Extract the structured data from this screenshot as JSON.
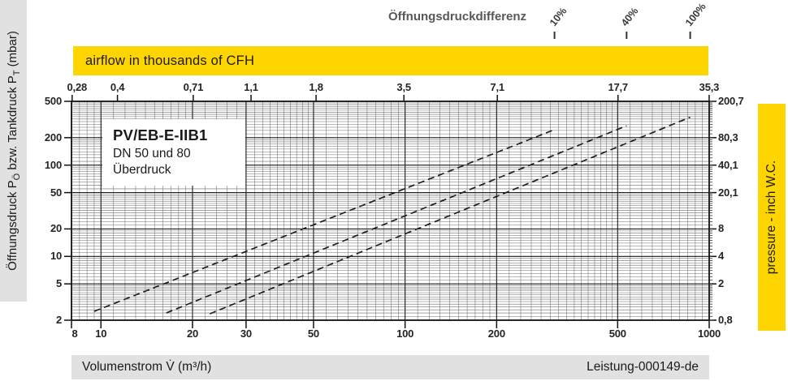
{
  "header": {
    "diff_label": "Öffnungsdruckdifferenz",
    "airflow_band": "airflow in thousands of CFH"
  },
  "legend_box": {
    "title": "PV/EB-E-IIB1",
    "line1": "DN 50 und 80",
    "line2": "Überdruck"
  },
  "left_band": {
    "part1": "Öffnungsdruck P",
    "sub1": "Ö",
    "part2": " bzw. Tankdruck P",
    "sub2": "T",
    "part3": " (mbar)"
  },
  "right_band": {
    "label": "pressure  - inch W.C."
  },
  "footer": {
    "x_axis_label": "Volumenstrom V̇ (m³/h)",
    "doc_id": "Leistung-000149-de"
  },
  "colors": {
    "accent_yellow": "#FFD500",
    "band_grey": "#E1E1E1",
    "grid_minor": "#6E6E6E",
    "grid_major": "#1C1C1C",
    "curve": "#1F1F1F",
    "text_dark": "#1A1A1A",
    "text_grey": "#585858"
  },
  "chart_data": {
    "type": "line",
    "title": "PV/EB-E-IIB1 DN 50 und 80 Überdruck",
    "xlabel": "Volumenstrom V̇ (m³/h)",
    "ylabel": "Öffnungsdruck PÖ bzw. Tankdruck PT (mbar)",
    "x_scale": "log",
    "y_scale": "log",
    "xlim": [
      8,
      1000
    ],
    "ylim": [
      2,
      500
    ],
    "grid": "fine-log",
    "x_axis": {
      "tick_labels": [
        "8",
        "10",
        "20",
        "30",
        "50",
        "100",
        "200",
        "500",
        "1000"
      ],
      "tick_values": [
        8,
        10,
        20,
        30,
        50,
        100,
        200,
        500,
        1000
      ]
    },
    "y_axis": {
      "tick_labels": [
        "500",
        "200",
        "100",
        "50",
        "20",
        "10",
        "5",
        "2"
      ],
      "tick_values": [
        500,
        200,
        100,
        50,
        20,
        10,
        5,
        2
      ]
    },
    "secondary_x_axis": {
      "label": "airflow in thousands of CFH",
      "tick_labels": [
        "0,28",
        "0,4",
        "0,71",
        "1,1",
        "1,8",
        "3,5",
        "7,1",
        "17,7",
        "35,3"
      ],
      "tick_values_m3h": [
        7.93,
        11.33,
        20.11,
        31.15,
        50.97,
        99.11,
        201.05,
        501.24,
        999.65
      ]
    },
    "secondary_y_axis": {
      "label": "pressure - inch W.C.",
      "tick_labels": [
        "200,7",
        "80,3",
        "40,1",
        "20,1",
        "8",
        "4",
        "2",
        "0,8"
      ],
      "tick_values_mbar": [
        500,
        200,
        100,
        50,
        20,
        10,
        5,
        2
      ]
    },
    "series_group_label": "Öffnungsdruckdifferenz",
    "series": [
      {
        "name": "10%",
        "style": "dashed",
        "points": [
          [
            9.5,
            2.5
          ],
          [
            310,
            245
          ]
        ]
      },
      {
        "name": "40%",
        "style": "dashed",
        "points": [
          [
            16.4,
            2.4
          ],
          [
            535,
            270
          ]
        ]
      },
      {
        "name": "100%",
        "style": "dashed",
        "points": [
          [
            22.8,
            2.35
          ],
          [
            866,
            335
          ]
        ]
      }
    ],
    "series_top_marker_values_m3h": [
      310,
      535,
      866
    ]
  }
}
